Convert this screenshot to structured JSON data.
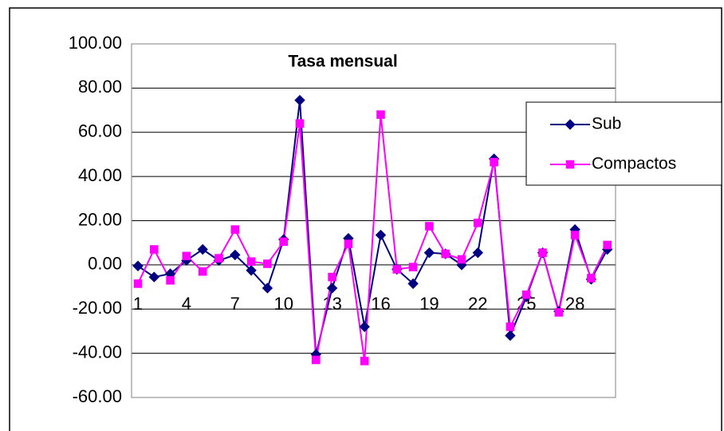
{
  "chart_data": {
    "type": "line",
    "title": "Tasa mensual",
    "categories": [
      "1",
      null,
      null,
      "4",
      null,
      null,
      "7",
      null,
      null,
      "10",
      null,
      null,
      "13",
      null,
      null,
      "16",
      null,
      null,
      "19",
      null,
      null,
      "22",
      null,
      null,
      "25",
      null,
      null,
      "28",
      null,
      null
    ],
    "series": [
      {
        "name": "Sub",
        "color": "#000080",
        "marker": "diamond",
        "values": [
          -0.5,
          -5.5,
          -4,
          2,
          7,
          2,
          4.5,
          -2.5,
          -10.5,
          11.5,
          74.5,
          -40.5,
          -10.5,
          12,
          -28,
          13.5,
          -2,
          -8.5,
          5.5,
          5,
          0,
          5.5,
          48,
          -32,
          -14.5,
          5.5,
          -21,
          16,
          -6.5,
          7
        ]
      },
      {
        "name": "Compactos",
        "color": "#ff00ff",
        "marker": "square",
        "values": [
          -8.5,
          7,
          -7,
          4,
          -3,
          3,
          16,
          1.5,
          0.5,
          10.5,
          64,
          -43,
          -5.5,
          9.5,
          -43.5,
          68,
          -2,
          -1,
          17.5,
          5,
          2.5,
          19,
          46.5,
          -28,
          -13.5,
          5.5,
          -21.5,
          13.5,
          -6,
          9
        ]
      }
    ],
    "ylim": [
      -60,
      100
    ],
    "yticks": [
      {
        "value": -60,
        "label": "-60.00"
      },
      {
        "value": -40,
        "label": "-40.00"
      },
      {
        "value": -20,
        "label": "-20.00"
      },
      {
        "value": 0,
        "label": "0.00"
      },
      {
        "value": 20,
        "label": "20.00"
      },
      {
        "value": 40,
        "label": "40.00"
      },
      {
        "value": 60,
        "label": "60.00"
      },
      {
        "value": 80,
        "label": "80.00"
      },
      {
        "value": 100,
        "label": "100.00"
      }
    ],
    "grid": true,
    "legend": "right"
  }
}
